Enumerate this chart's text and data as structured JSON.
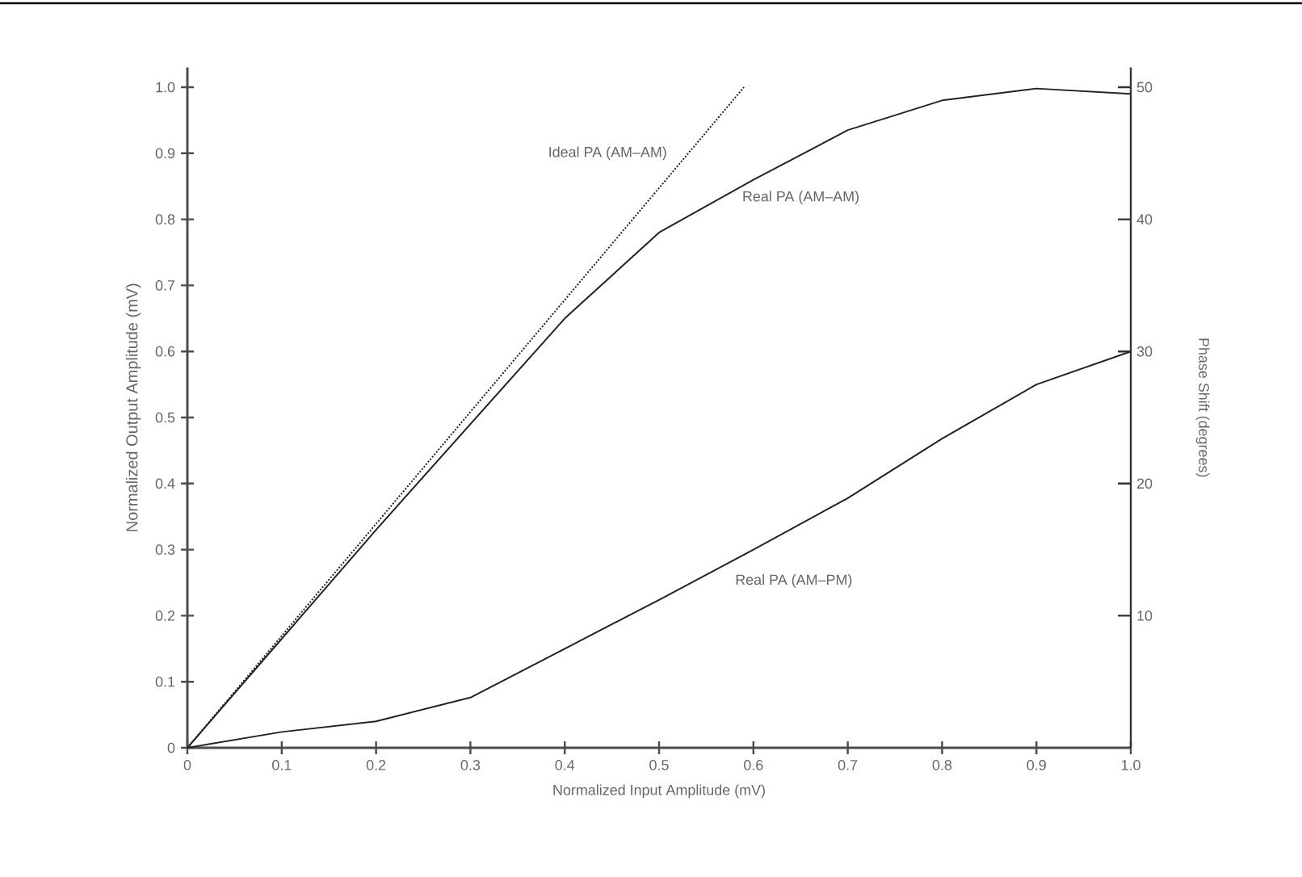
{
  "chart_data": {
    "type": "line",
    "xlabel": "Normalized Input Amplitude (mV)",
    "ylabel": "Normalized Output Amplitude (mV)",
    "y2label": "Phase Shift (degrees)",
    "xlim": [
      0,
      1.0
    ],
    "ylim": [
      0,
      1.03
    ],
    "y2lim": [
      0,
      51.5
    ],
    "xticks": [
      0,
      0.1,
      0.2,
      0.3,
      0.4,
      0.5,
      0.6,
      0.7,
      0.8,
      0.9,
      {
        "value": 1.0,
        "label": "1.0"
      }
    ],
    "yticks": [
      0,
      0.1,
      0.2,
      0.3,
      0.4,
      0.5,
      0.6,
      0.7,
      0.8,
      0.9,
      {
        "value": 1.0,
        "label": "1.0"
      }
    ],
    "y2ticks": [
      10,
      20,
      30,
      40,
      50
    ],
    "series": [
      {
        "name": "Ideal PA (AM–AM)",
        "color": "#222222",
        "line_style": "dotted",
        "x": [
          0,
          0.59
        ],
        "values": [
          0,
          1.0
        ]
      },
      {
        "name": "Real PA (AM–AM)",
        "color": "#222222",
        "line_style": "solid",
        "x": [
          0,
          0.1,
          0.2,
          0.3,
          0.4,
          0.5,
          0.6,
          0.7,
          0.8,
          0.9,
          1.0
        ],
        "values": [
          0,
          0.165,
          0.33,
          0.49,
          0.65,
          0.78,
          0.86,
          0.935,
          0.98,
          0.998,
          0.99
        ]
      },
      {
        "name": "Real PA (AM–PM)",
        "color": "#222222",
        "line_style": "solid",
        "axis": "y2",
        "x": [
          0,
          0.1,
          0.2,
          0.3,
          0.4,
          0.5,
          0.6,
          0.7,
          0.8,
          0.9,
          1.0
        ],
        "values": [
          0,
          1.2,
          2.0,
          3.8,
          7.5,
          11.2,
          15.0,
          18.9,
          23.4,
          27.5,
          30.0
        ]
      }
    ]
  }
}
